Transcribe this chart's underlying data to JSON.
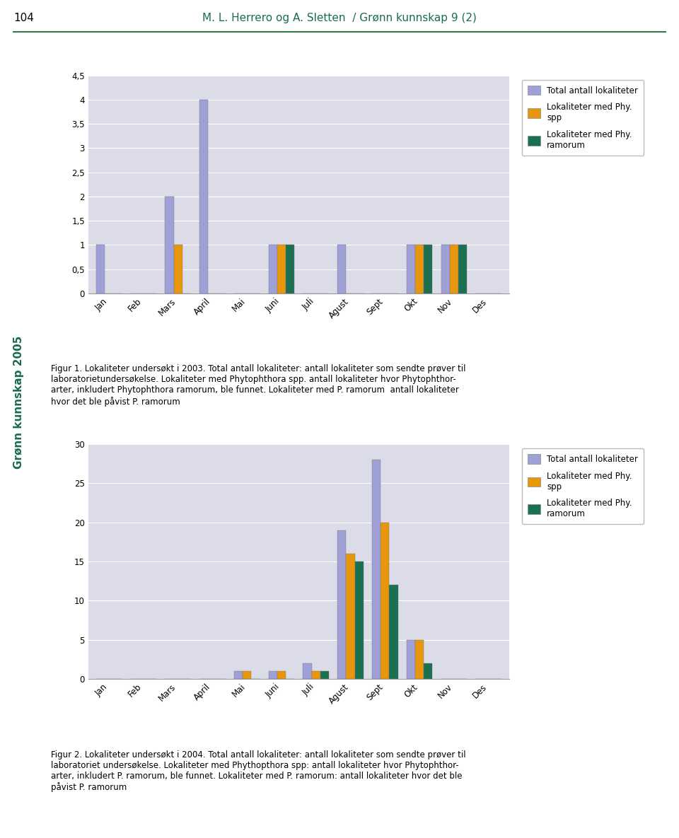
{
  "chart1": {
    "months": [
      "Jan",
      "Feb",
      "Mars",
      "April",
      "Mai",
      "Juni",
      "Juli",
      "Agust",
      "Sept",
      "Okt",
      "Nov",
      "Des"
    ],
    "total": [
      1,
      0,
      2,
      4,
      0,
      1,
      0,
      1,
      0,
      1,
      1,
      0
    ],
    "phy_spp": [
      0,
      0,
      1,
      0,
      0,
      1,
      0,
      0,
      0,
      1,
      1,
      0
    ],
    "phy_ram": [
      0,
      0,
      0,
      0,
      0,
      1,
      0,
      0,
      0,
      1,
      1,
      0
    ],
    "ylim": [
      0,
      4.5
    ],
    "yticks": [
      0,
      0.5,
      1,
      1.5,
      2,
      2.5,
      3,
      3.5,
      4,
      4.5
    ],
    "ytick_labels": [
      "0",
      "0,5",
      "1",
      "1,5",
      "2",
      "2,5",
      "3",
      "3,5",
      "4",
      "4,5"
    ]
  },
  "chart2": {
    "months": [
      "Jan",
      "Feb",
      "Mars",
      "April",
      "Mai",
      "Juni",
      "Juli",
      "Agust",
      "Sept",
      "Okt",
      "Nov",
      "Des"
    ],
    "total": [
      0,
      0,
      0,
      0,
      1,
      1,
      2,
      19,
      28,
      5,
      0,
      0
    ],
    "phy_spp": [
      0,
      0,
      0,
      0,
      1,
      1,
      1,
      16,
      20,
      5,
      0,
      0
    ],
    "phy_ram": [
      0,
      0,
      0,
      0,
      0,
      0,
      1,
      15,
      12,
      2,
      0,
      0
    ],
    "ylim": [
      0,
      30
    ],
    "yticks": [
      0,
      5,
      10,
      15,
      20,
      25,
      30
    ],
    "ytick_labels": [
      "0",
      "5",
      "10",
      "15",
      "20",
      "25",
      "30"
    ]
  },
  "colors": {
    "total": "#a0a0d8",
    "phy_spp": "#e8960c",
    "phy_ram": "#1a7050"
  },
  "legend_labels": [
    "Total antall lokaliteter",
    "Lokaliteter med Phy.\nspp",
    "Lokaliteter med Phy.\nramorum"
  ],
  "chart_bg": "#dcdce8",
  "fig_bg": "#ffffff",
  "header_text": "M. L. Herrero og A. Sletten  / Grønn kunnskap 9 (2)",
  "page_num": "104",
  "sidebar_text": "Grønn kunnskap 2005",
  "fig1_caption_normal": "Figur 1. Lokaliteter undersøkt i 2003. Total antall lokaliteter: antall lokaliteter som sendte prøver til laboratorietundersøkelse. Lokaliteter med ",
  "fig1_caption_italic1": "Phytophthora spp.",
  "fig1_caption_mid1": " antall lokaliteter hvor ",
  "fig1_caption_italic2": "Phytophthor-",
  "fig1_caption_end1": "\narter, inkludert ",
  "fig1_caption_italic3": "Phytophthora ramorum",
  "fig1_caption_end2": ", ble funnet. Lokaliteter med ",
  "fig1_caption_italic4": "P. ramorum",
  "fig1_caption_end3": "  antall lokaliteter\nhvor det ble påvist ",
  "fig1_caption_italic5": "P. ramorum",
  "fig2_caption_normal": "Figur 2. Lokaliteter undersøkt i 2004. Total antall lokaliteter: antall lokaliteter som sendte prøver til\nlaboratoriet undersøkelse. Lokaliteter med ",
  "fig2_caption_italic1": "Phythopthora",
  "fig2_caption_mid1": " spp: antall lokaliteter hvor ",
  "fig2_caption_italic2": "Phytophthor-",
  "fig2_caption_end1": "\narter, inkludert ",
  "fig2_caption_italic3": "P. ramorum",
  "fig2_caption_end2": ", ble funnet. Lokaliteter med ",
  "fig2_caption_italic4": "P. ramorum",
  "fig2_caption_end3": ": antall lokaliteter hvor det ble\npåvist ",
  "fig2_caption_italic5": "P. ramorum"
}
